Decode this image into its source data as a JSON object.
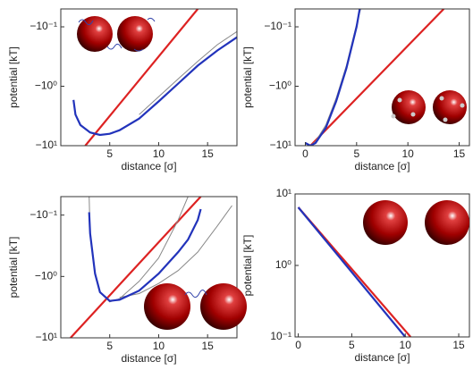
{
  "chart_data": [
    {
      "type": "line",
      "log_scale": true,
      "xlabel": "distance [σ]",
      "ylabel": "potential [kT]",
      "xlim": [
        0,
        18
      ],
      "xticks": [
        5,
        10,
        15
      ],
      "ylim": [
        -10,
        -0.05
      ],
      "yticks": [
        {
          "value": -0.1,
          "label": "−10⁻¹"
        },
        {
          "value": -1,
          "label": "−10⁰"
        },
        {
          "value": -10,
          "label": "−10¹"
        }
      ],
      "series": [
        {
          "color": "#dd2222",
          "x": [
            2.5,
            14
          ],
          "values": [
            -10,
            -0.05
          ]
        },
        {
          "color": "#888888",
          "x": [
            8,
            10,
            12,
            14,
            16,
            18
          ],
          "values": [
            -3,
            -1.5,
            -0.75,
            -0.38,
            -0.2,
            -0.12
          ]
        },
        {
          "color": "#2233bb",
          "x": [
            1.3,
            1.5,
            2,
            3,
            4,
            5,
            6,
            8,
            10,
            12,
            14,
            16,
            18
          ],
          "values": [
            -1.7,
            -3,
            -4.5,
            -6,
            -6.6,
            -6.3,
            -5.5,
            -3.5,
            -1.8,
            -0.9,
            -0.45,
            -0.25,
            -0.15
          ]
        }
      ]
    },
    {
      "type": "line",
      "log_scale": true,
      "xlabel": "distance [σ]",
      "ylabel": "potential [kT]",
      "xlim": [
        -1,
        16
      ],
      "xticks": [
        0,
        5,
        10,
        15
      ],
      "ylim": [
        -10,
        -0.05
      ],
      "yticks": [
        {
          "value": -0.1,
          "label": "−10⁻¹"
        },
        {
          "value": -1,
          "label": "−10⁰"
        },
        {
          "value": -10,
          "label": "−10¹"
        }
      ],
      "series": [
        {
          "color": "#dd2222",
          "x": [
            0.5,
            13.5
          ],
          "values": [
            -10,
            -0.05
          ]
        },
        {
          "color": "#888888",
          "x": [
            0,
            0.5,
            1,
            2,
            3,
            4,
            5,
            5.4
          ],
          "values": [
            -9,
            -10,
            -8.5,
            -4.5,
            -1.6,
            -0.45,
            -0.09,
            -0.05
          ]
        },
        {
          "color": "#2233bb",
          "x": [
            0,
            0.5,
            1,
            2,
            3,
            4,
            5,
            5.3
          ],
          "values": [
            -9,
            -10,
            -9,
            -5,
            -1.8,
            -0.5,
            -0.1,
            -0.05
          ]
        }
      ]
    },
    {
      "type": "line",
      "log_scale": true,
      "xlabel": "distance [σ]",
      "ylabel": "potential [kT]",
      "xlim": [
        0,
        18
      ],
      "xticks": [
        5,
        10,
        15
      ],
      "ylim": [
        -10,
        -0.05
      ],
      "yticks": [
        {
          "value": -0.1,
          "label": "−10⁻¹"
        },
        {
          "value": -1,
          "label": "−10⁰"
        },
        {
          "value": -10,
          "label": "−10¹"
        }
      ],
      "series": [
        {
          "color": "#dd2222",
          "x": [
            1,
            14.3
          ],
          "values": [
            -10,
            -0.05
          ]
        },
        {
          "color": "#888888",
          "x": [
            2.9,
            3,
            3.5,
            4,
            5,
            6,
            8,
            10,
            12,
            13
          ],
          "values": [
            -0.05,
            -0.2,
            -0.9,
            -1.8,
            -2.6,
            -2.3,
            -1.2,
            -0.5,
            -0.12,
            -0.05
          ]
        },
        {
          "color": "#888888",
          "x": [
            6,
            8,
            10,
            12,
            14,
            16,
            17.5
          ],
          "values": [
            -2.2,
            -1.9,
            -1.3,
            -0.8,
            -0.4,
            -0.15,
            -0.07
          ]
        },
        {
          "color": "#2233bb",
          "x": [
            2.9,
            3,
            3.5,
            4,
            5,
            6,
            8,
            10,
            12,
            13,
            14,
            14.3
          ],
          "values": [
            -0.09,
            -0.2,
            -0.9,
            -1.8,
            -2.5,
            -2.4,
            -1.7,
            -0.9,
            -0.4,
            -0.25,
            -0.12,
            -0.08
          ]
        }
      ]
    },
    {
      "type": "line",
      "log_scale": true,
      "xlabel": "distance [σ]",
      "ylabel": "potential [kT]",
      "xlim": [
        -0.3,
        16
      ],
      "xticks": [
        0,
        5,
        10,
        15
      ],
      "ylim": [
        0.1,
        10
      ],
      "yticks": [
        {
          "value": 10,
          "label": "10¹"
        },
        {
          "value": 1,
          "label": "10⁰"
        },
        {
          "value": 0.1,
          "label": "10⁻¹"
        }
      ],
      "series": [
        {
          "color": "#dd2222",
          "x": [
            0,
            10.5
          ],
          "values": [
            6.5,
            0.1
          ]
        },
        {
          "color": "#2233bb",
          "x": [
            0,
            10
          ],
          "values": [
            6.5,
            0.1
          ]
        }
      ]
    }
  ]
}
